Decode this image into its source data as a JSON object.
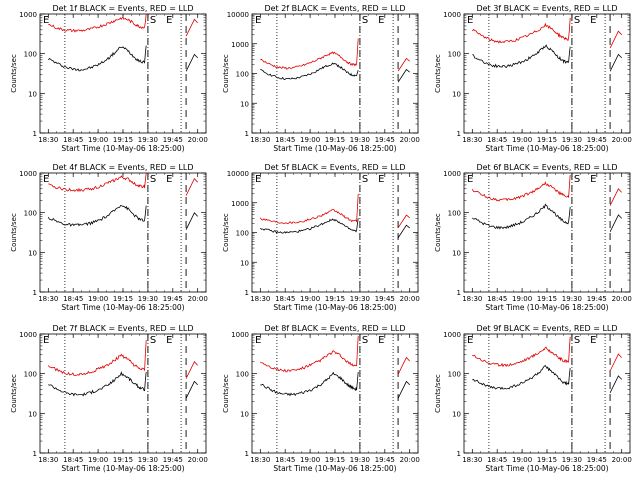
{
  "figure": {
    "panel_title_template": "Det {det} BLACK = Events, RED = LLD",
    "ylabel": "Counts/sec",
    "xlabel": "Start Time (10-May-06 18:25:00)",
    "x_tick_labels": [
      "18:30",
      "18:45",
      "19:00",
      "19:15",
      "19:30",
      "19:45",
      "20:00"
    ],
    "y_tick_labels": [
      "1",
      "10",
      "100",
      "1000"
    ],
    "marker_labels": [
      "E",
      "S",
      "E"
    ],
    "colors": {
      "events": "#000000",
      "lld": "#e00000"
    }
  },
  "chart_data": [
    {
      "type": "line",
      "title": "Det 1f BLACK = Events, RED = LLD",
      "det": "1f",
      "xlabel": "Start Time (10-May-06 18:25:00)",
      "ylabel": "Counts/sec",
      "xlim": [
        "18:25",
        "20:05"
      ],
      "ylim": [
        1,
        1000
      ],
      "yscale": "log",
      "dotted_markers": [
        "18:40",
        "19:30",
        "19:50"
      ],
      "dashed_markers": [
        "19:30",
        "19:53"
      ],
      "series": [
        {
          "name": "Events",
          "color": "#000000",
          "x": [
            "18:30",
            "18:36",
            "18:41",
            "18:46",
            "18:51",
            "18:56",
            "19:01",
            "19:06",
            "19:10",
            "19:14",
            "19:18",
            "19:22",
            "19:25",
            "19:28",
            "19:29"
          ],
          "y": [
            75,
            55,
            45,
            40,
            40,
            45,
            55,
            75,
            105,
            150,
            120,
            80,
            65,
            60,
            160
          ]
        },
        {
          "name": "LLD",
          "color": "#e00000",
          "x": [
            "18:30",
            "18:36",
            "18:41",
            "18:46",
            "18:51",
            "18:56",
            "19:01",
            "19:06",
            "19:10",
            "19:14",
            "19:18",
            "19:22",
            "19:25",
            "19:28",
            "19:29"
          ],
          "y": [
            550,
            430,
            390,
            380,
            385,
            420,
            490,
            580,
            680,
            790,
            720,
            560,
            480,
            460,
            1000
          ]
        }
      ]
    },
    {
      "type": "line",
      "title": "Det 2f BLACK = Events, RED = LLD",
      "det": "2f",
      "xlabel": "Start Time (10-May-06 18:25:00)",
      "ylabel": "Counts/sec",
      "xlim": [
        "18:25",
        "20:05"
      ],
      "ylim": [
        1,
        10000
      ],
      "yscale": "log",
      "dotted_markers": [
        "18:40",
        "19:30",
        "19:50"
      ],
      "dashed_markers": [
        "19:30",
        "19:53"
      ],
      "series": [
        {
          "name": "Events",
          "color": "#000000",
          "x": [
            "18:30",
            "18:36",
            "18:41",
            "18:46",
            "18:51",
            "18:56",
            "19:01",
            "19:06",
            "19:10",
            "19:14",
            "19:18",
            "19:22",
            "19:25",
            "19:28",
            "19:29"
          ],
          "y": [
            130,
            90,
            72,
            65,
            68,
            80,
            100,
            140,
            180,
            220,
            170,
            110,
            90,
            85,
            130
          ]
        },
        {
          "name": "LLD",
          "color": "#e00000",
          "x": [
            "18:30",
            "18:36",
            "18:41",
            "18:46",
            "18:51",
            "18:56",
            "19:01",
            "19:06",
            "19:10",
            "19:14",
            "19:18",
            "19:22",
            "19:25",
            "19:28",
            "19:29"
          ],
          "y": [
            300,
            200,
            160,
            150,
            160,
            190,
            240,
            320,
            420,
            500,
            380,
            250,
            200,
            200,
            1500
          ]
        }
      ]
    },
    {
      "type": "line",
      "title": "Det 3f BLACK = Events, RED = LLD",
      "det": "3f",
      "xlabel": "Start Time (10-May-06 18:25:00)",
      "ylabel": "Counts/sec",
      "xlim": [
        "18:25",
        "20:05"
      ],
      "ylim": [
        1,
        1000
      ],
      "yscale": "log",
      "dotted_markers": [
        "18:40",
        "19:30",
        "19:50"
      ],
      "dashed_markers": [
        "19:30",
        "19:53"
      ],
      "series": [
        {
          "name": "Events",
          "color": "#000000",
          "x": [
            "18:30",
            "18:36",
            "18:41",
            "18:46",
            "18:51",
            "18:56",
            "19:01",
            "19:06",
            "19:10",
            "19:14",
            "19:18",
            "19:22",
            "19:25",
            "19:28",
            "19:29"
          ],
          "y": [
            90,
            65,
            52,
            48,
            48,
            55,
            65,
            85,
            110,
            160,
            120,
            80,
            65,
            60,
            150
          ]
        },
        {
          "name": "LLD",
          "color": "#e00000",
          "x": [
            "18:30",
            "18:36",
            "18:41",
            "18:46",
            "18:51",
            "18:56",
            "19:01",
            "19:06",
            "19:10",
            "19:14",
            "19:18",
            "19:22",
            "19:25",
            "19:28",
            "19:29"
          ],
          "y": [
            400,
            280,
            220,
            200,
            200,
            220,
            260,
            320,
            400,
            520,
            420,
            300,
            250,
            230,
            800
          ]
        }
      ]
    },
    {
      "type": "line",
      "title": "Det 4f BLACK = Events, RED = LLD",
      "det": "4f",
      "xlabel": "Start Time (10-May-06 18:25:00)",
      "ylabel": "Counts/sec",
      "xlim": [
        "18:25",
        "20:05"
      ],
      "ylim": [
        1,
        1000
      ],
      "yscale": "log",
      "dotted_markers": [
        "18:40",
        "19:30",
        "19:50"
      ],
      "dashed_markers": [
        "19:30",
        "19:53"
      ],
      "series": [
        {
          "name": "Events",
          "color": "#000000",
          "x": [
            "18:30",
            "18:36",
            "18:41",
            "18:46",
            "18:51",
            "18:56",
            "19:01",
            "19:06",
            "19:10",
            "19:14",
            "19:18",
            "19:22",
            "19:25",
            "19:28",
            "19:29"
          ],
          "y": [
            75,
            58,
            50,
            48,
            50,
            55,
            65,
            85,
            115,
            160,
            125,
            85,
            68,
            62,
            150
          ]
        },
        {
          "name": "LLD",
          "color": "#e00000",
          "x": [
            "18:30",
            "18:36",
            "18:41",
            "18:46",
            "18:51",
            "18:56",
            "19:01",
            "19:06",
            "19:10",
            "19:14",
            "19:18",
            "19:22",
            "19:25",
            "19:28",
            "19:29"
          ],
          "y": [
            500,
            420,
            380,
            370,
            375,
            400,
            460,
            560,
            660,
            780,
            700,
            540,
            470,
            450,
            1000
          ]
        }
      ]
    },
    {
      "type": "line",
      "title": "Det 5f BLACK = Events, RED = LLD",
      "det": "5f",
      "xlabel": "Start Time (10-May-06 18:25:00)",
      "ylabel": "Counts/sec",
      "xlim": [
        "18:25",
        "20:05"
      ],
      "ylim": [
        1,
        10000
      ],
      "yscale": "log",
      "dotted_markers": [
        "18:40",
        "19:30",
        "19:50"
      ],
      "dashed_markers": [
        "19:30",
        "19:53"
      ],
      "series": [
        {
          "name": "Events",
          "color": "#000000",
          "x": [
            "18:30",
            "18:36",
            "18:41",
            "18:46",
            "18:51",
            "18:56",
            "19:01",
            "19:06",
            "19:10",
            "19:14",
            "19:18",
            "19:22",
            "19:25",
            "19:28",
            "19:29"
          ],
          "y": [
            140,
            115,
            100,
            100,
            105,
            115,
            140,
            180,
            230,
            280,
            220,
            150,
            120,
            110,
            300
          ]
        },
        {
          "name": "LLD",
          "color": "#e00000",
          "x": [
            "18:30",
            "18:36",
            "18:41",
            "18:46",
            "18:51",
            "18:56",
            "19:01",
            "19:06",
            "19:10",
            "19:14",
            "19:18",
            "19:22",
            "19:25",
            "19:28",
            "19:29"
          ],
          "y": [
            300,
            250,
            220,
            215,
            220,
            240,
            290,
            360,
            450,
            560,
            440,
            300,
            250,
            240,
            2000
          ]
        }
      ]
    },
    {
      "type": "line",
      "title": "Det 6f BLACK = Events, RED = LLD",
      "det": "6f",
      "xlabel": "Start Time (10-May-06 18:25:00)",
      "ylabel": "Counts/sec",
      "xlim": [
        "18:25",
        "20:05"
      ],
      "ylim": [
        1,
        1000
      ],
      "yscale": "log",
      "dotted_markers": [
        "18:40",
        "19:30",
        "19:50"
      ],
      "dashed_markers": [
        "19:30",
        "19:53"
      ],
      "series": [
        {
          "name": "Events",
          "color": "#000000",
          "x": [
            "18:30",
            "18:36",
            "18:41",
            "18:46",
            "18:51",
            "18:56",
            "19:01",
            "19:06",
            "19:10",
            "19:14",
            "19:18",
            "19:22",
            "19:25",
            "19:28",
            "19:29"
          ],
          "y": [
            75,
            55,
            45,
            42,
            43,
            50,
            60,
            80,
            105,
            150,
            115,
            75,
            60,
            55,
            140
          ]
        },
        {
          "name": "LLD",
          "color": "#e00000",
          "x": [
            "18:30",
            "18:36",
            "18:41",
            "18:46",
            "18:51",
            "18:56",
            "19:01",
            "19:06",
            "19:10",
            "19:14",
            "19:18",
            "19:22",
            "19:25",
            "19:28",
            "19:29"
          ],
          "y": [
            380,
            280,
            230,
            210,
            210,
            230,
            270,
            330,
            420,
            550,
            440,
            320,
            270,
            250,
            900
          ]
        }
      ]
    },
    {
      "type": "line",
      "title": "Det 7f BLACK = Events, RED = LLD",
      "det": "7f",
      "xlabel": "Start Time (10-May-06 18:25:00)",
      "ylabel": "Counts/sec",
      "xlim": [
        "18:25",
        "20:05"
      ],
      "ylim": [
        1,
        1000
      ],
      "yscale": "log",
      "dotted_markers": [
        "18:40",
        "19:30",
        "19:50"
      ],
      "dashed_markers": [
        "19:30",
        "19:53"
      ],
      "series": [
        {
          "name": "Events",
          "color": "#000000",
          "x": [
            "18:30",
            "18:36",
            "18:41",
            "18:46",
            "18:51",
            "18:56",
            "19:01",
            "19:06",
            "19:10",
            "19:14",
            "19:18",
            "19:22",
            "19:25",
            "19:28",
            "19:29"
          ],
          "y": [
            55,
            40,
            32,
            30,
            30,
            34,
            40,
            52,
            70,
            100,
            80,
            55,
            45,
            40,
            110
          ]
        },
        {
          "name": "LLD",
          "color": "#e00000",
          "x": [
            "18:30",
            "18:36",
            "18:41",
            "18:46",
            "18:51",
            "18:56",
            "19:01",
            "19:06",
            "19:10",
            "19:14",
            "19:18",
            "19:22",
            "19:25",
            "19:28",
            "19:29"
          ],
          "y": [
            160,
            120,
            100,
            95,
            98,
            110,
            135,
            170,
            220,
            290,
            230,
            160,
            135,
            125,
            700
          ]
        }
      ]
    },
    {
      "type": "line",
      "title": "Det 8f BLACK = Events, RED = LLD",
      "det": "8f",
      "xlabel": "Start Time (10-May-06 18:25:00)",
      "ylabel": "Counts/sec",
      "xlim": [
        "18:25",
        "20:05"
      ],
      "ylim": [
        1,
        1000
      ],
      "yscale": "log",
      "dotted_markers": [
        "18:40",
        "19:30",
        "19:50"
      ],
      "dashed_markers": [
        "19:30",
        "19:53"
      ],
      "series": [
        {
          "name": "Events",
          "color": "#000000",
          "x": [
            "18:30",
            "18:36",
            "18:41",
            "18:46",
            "18:51",
            "18:56",
            "19:01",
            "19:06",
            "19:10",
            "19:14",
            "19:18",
            "19:22",
            "19:25",
            "19:28",
            "19:29"
          ],
          "y": [
            55,
            40,
            32,
            30,
            30,
            34,
            40,
            52,
            70,
            100,
            80,
            55,
            45,
            40,
            110
          ]
        },
        {
          "name": "LLD",
          "color": "#e00000",
          "x": [
            "18:30",
            "18:36",
            "18:41",
            "18:46",
            "18:51",
            "18:56",
            "19:01",
            "19:06",
            "19:10",
            "19:14",
            "19:18",
            "19:22",
            "19:25",
            "19:28",
            "19:29"
          ],
          "y": [
            200,
            150,
            125,
            118,
            122,
            140,
            170,
            215,
            280,
            360,
            290,
            200,
            170,
            160,
            900
          ]
        }
      ]
    },
    {
      "type": "line",
      "title": "Det 9f BLACK = Events, RED = LLD",
      "det": "9f",
      "xlabel": "Start Time (10-May-06 18:25:00)",
      "ylabel": "Counts/sec",
      "xlim": [
        "18:25",
        "20:05"
      ],
      "ylim": [
        1,
        1000
      ],
      "yscale": "log",
      "dotted_markers": [
        "18:40",
        "19:30",
        "19:50"
      ],
      "dashed_markers": [
        "19:30",
        "19:53"
      ],
      "series": [
        {
          "name": "Events",
          "color": "#000000",
          "x": [
            "18:30",
            "18:36",
            "18:41",
            "18:46",
            "18:51",
            "18:56",
            "19:01",
            "19:06",
            "19:10",
            "19:14",
            "19:18",
            "19:22",
            "19:25",
            "19:28",
            "19:29"
          ],
          "y": [
            75,
            55,
            45,
            42,
            43,
            50,
            60,
            80,
            105,
            150,
            115,
            75,
            60,
            55,
            140
          ]
        },
        {
          "name": "LLD",
          "color": "#e00000",
          "x": [
            "18:30",
            "18:36",
            "18:41",
            "18:46",
            "18:51",
            "18:56",
            "19:01",
            "19:06",
            "19:10",
            "19:14",
            "19:18",
            "19:22",
            "19:25",
            "19:28",
            "19:29"
          ],
          "y": [
            300,
            220,
            180,
            165,
            165,
            180,
            215,
            270,
            340,
            440,
            350,
            250,
            210,
            195,
            850
          ]
        }
      ]
    }
  ]
}
